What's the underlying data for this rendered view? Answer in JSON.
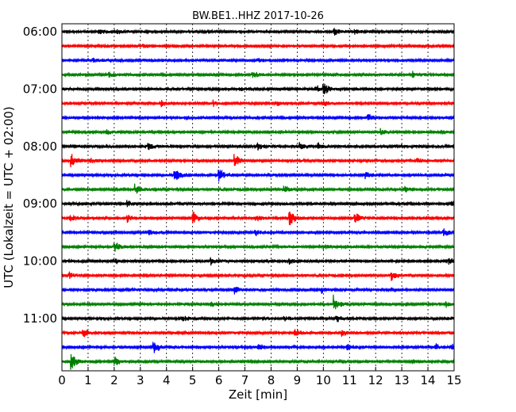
{
  "chart_data": {
    "type": "line",
    "title": "BW.BE1..HHZ 2017-10-26",
    "xlabel": "Zeit  [min]",
    "ylabel": "UTC (Lokalzeit = UTC + 02:00)",
    "xlim": [
      0,
      15
    ],
    "x_ticks": [
      "0",
      "1",
      "2",
      "3",
      "4",
      "5",
      "6",
      "7",
      "8",
      "9",
      "10",
      "11",
      "12",
      "13",
      "14",
      "15"
    ],
    "y_tick_labels": [
      "06:00",
      "07:00",
      "08:00",
      "09:00",
      "10:00",
      "11:00"
    ],
    "grid": "vertical dotted",
    "trace_colors": [
      "#000000",
      "#ff0000",
      "#0000ff",
      "#008000"
    ],
    "trace_interval_min": 15,
    "traces": [
      {
        "start": "06:00",
        "color": "#000000",
        "events": [
          [
            1.4,
            4
          ],
          [
            2.1,
            3
          ],
          [
            10.4,
            6
          ],
          [
            11.2,
            4
          ]
        ]
      },
      {
        "start": "06:15",
        "color": "#ff0000",
        "events": [
          [
            1.6,
            3
          ],
          [
            3.1,
            3
          ]
        ]
      },
      {
        "start": "06:30",
        "color": "#0000ff",
        "events": [
          [
            1.2,
            3
          ],
          [
            7.5,
            3
          ]
        ]
      },
      {
        "start": "06:45",
        "color": "#008000",
        "events": [
          [
            1.8,
            3
          ],
          [
            7.3,
            5
          ],
          [
            13.4,
            4
          ]
        ]
      },
      {
        "start": "07:00",
        "color": "#000000",
        "events": [
          [
            6.8,
            4
          ],
          [
            10.0,
            10
          ],
          [
            9.7,
            5
          ]
        ]
      },
      {
        "start": "07:15",
        "color": "#ff0000",
        "events": [
          [
            3.8,
            4
          ],
          [
            5.8,
            4
          ],
          [
            8.2,
            3
          ],
          [
            10.0,
            4
          ]
        ]
      },
      {
        "start": "07:30",
        "color": "#0000ff",
        "events": [
          [
            4.7,
            3
          ],
          [
            11.7,
            6
          ]
        ]
      },
      {
        "start": "07:45",
        "color": "#008000",
        "events": [
          [
            1.7,
            3
          ],
          [
            12.2,
            4
          ],
          [
            14.5,
            3
          ]
        ]
      },
      {
        "start": "08:00",
        "color": "#000000",
        "events": [
          [
            3.3,
            6
          ],
          [
            7.5,
            5
          ],
          [
            9.1,
            5
          ],
          [
            9.8,
            4
          ]
        ]
      },
      {
        "start": "08:15",
        "color": "#ff0000",
        "events": [
          [
            0.35,
            12
          ],
          [
            1.1,
            4
          ],
          [
            6.6,
            11
          ],
          [
            13.6,
            4
          ]
        ]
      },
      {
        "start": "08:30",
        "color": "#0000ff",
        "events": [
          [
            4.3,
            12
          ],
          [
            6.0,
            10
          ],
          [
            11.6,
            6
          ]
        ]
      },
      {
        "start": "08:45",
        "color": "#008000",
        "events": [
          [
            2.8,
            7
          ],
          [
            8.5,
            5
          ],
          [
            13.1,
            4
          ]
        ]
      },
      {
        "start": "09:00",
        "color": "#000000",
        "events": [
          [
            2.5,
            5
          ],
          [
            14.9,
            7
          ]
        ]
      },
      {
        "start": "09:15",
        "color": "#ff0000",
        "events": [
          [
            0.3,
            5
          ],
          [
            2.5,
            6
          ],
          [
            5.0,
            9
          ],
          [
            7.4,
            5
          ],
          [
            8.7,
            12
          ],
          [
            11.2,
            9
          ]
        ]
      },
      {
        "start": "09:30",
        "color": "#0000ff",
        "events": [
          [
            3.3,
            4
          ],
          [
            7.4,
            4
          ],
          [
            14.6,
            5
          ]
        ]
      },
      {
        "start": "09:45",
        "color": "#008000",
        "events": [
          [
            2.0,
            7
          ],
          [
            10.0,
            4
          ]
        ]
      },
      {
        "start": "10:00",
        "color": "#000000",
        "events": [
          [
            2.0,
            4
          ],
          [
            5.7,
            5
          ],
          [
            8.7,
            4
          ],
          [
            14.8,
            5
          ]
        ]
      },
      {
        "start": "10:15",
        "color": "#ff0000",
        "events": [
          [
            0.3,
            4
          ],
          [
            12.6,
            10
          ]
        ]
      },
      {
        "start": "10:30",
        "color": "#0000ff",
        "events": [
          [
            6.6,
            5
          ],
          [
            9.9,
            5
          ]
        ]
      },
      {
        "start": "10:45",
        "color": "#008000",
        "events": [
          [
            5.7,
            4
          ],
          [
            10.4,
            14
          ],
          [
            14.7,
            3
          ]
        ]
      },
      {
        "start": "11:00",
        "color": "#000000",
        "events": [
          [
            4.6,
            4
          ],
          [
            8.5,
            4
          ],
          [
            10.5,
            5
          ]
        ]
      },
      {
        "start": "11:15",
        "color": "#ff0000",
        "events": [
          [
            0.8,
            8
          ],
          [
            8.9,
            7
          ],
          [
            10.7,
            4
          ]
        ]
      },
      {
        "start": "11:30",
        "color": "#0000ff",
        "events": [
          [
            3.5,
            10
          ],
          [
            7.5,
            5
          ],
          [
            10.9,
            6
          ],
          [
            14.3,
            4
          ],
          [
            14.9,
            6
          ]
        ]
      },
      {
        "start": "11:45",
        "color": "#008000",
        "events": [
          [
            0.35,
            14
          ],
          [
            2.0,
            8
          ],
          [
            13.4,
            4
          ]
        ]
      }
    ]
  }
}
